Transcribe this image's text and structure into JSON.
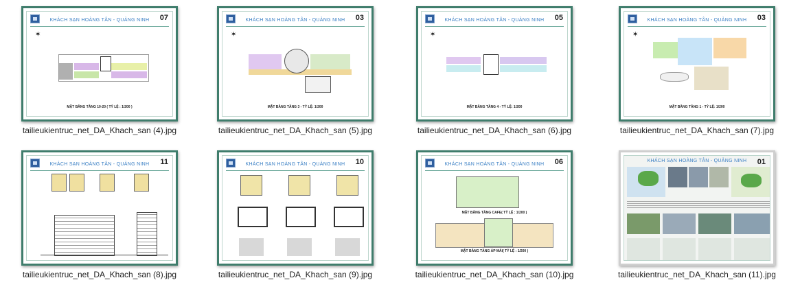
{
  "files": [
    {
      "name": "tailieukientruc_net_DA_Khach_san (4).jpg",
      "sheet_title": "KHÁCH SẠN HOÀNG TÂN - QUẢNG NINH",
      "sheet_number": "07",
      "caption": "MẶT BẰNG TẦNG 10-20 ( TỶ LỆ : 1/200 )"
    },
    {
      "name": "tailieukientruc_net_DA_Khach_san (5).jpg",
      "sheet_title": "KHÁCH SẠN HOÀNG TÂN - QUẢNG NINH",
      "sheet_number": "03",
      "caption": "MẶT BẰNG TẦNG 3 - TỶ LỆ: 1/200"
    },
    {
      "name": "tailieukientruc_net_DA_Khach_san (6).jpg",
      "sheet_title": "KHÁCH SẠN HOÀNG TÂN - QUẢNG NINH",
      "sheet_number": "05",
      "caption": "MẶT BẰNG TẦNG 4 - TỶ LỆ: 1/200"
    },
    {
      "name": "tailieukientruc_net_DA_Khach_san (7).jpg",
      "sheet_title": "KHÁCH SẠN HOÀNG TÂN - QUẢNG NINH",
      "sheet_number": "03",
      "caption": "MẶT BẰNG TẦNG 1 - TỶ LỆ: 1/200"
    },
    {
      "name": "tailieukientruc_net_DA_Khach_san (8).jpg",
      "sheet_title": "KHÁCH SẠN HOÀNG TÂN - QUẢNG NINH",
      "sheet_number": "11",
      "caption": ""
    },
    {
      "name": "tailieukientruc_net_DA_Khach_san (9).jpg",
      "sheet_title": "KHÁCH SẠN HOÀNG TÂN - QUẢNG NINH",
      "sheet_number": "10",
      "caption": ""
    },
    {
      "name": "tailieukientruc_net_DA_Khach_san (10).jpg",
      "sheet_title": "KHÁCH SẠN HOÀNG TÂN - QUẢNG NINH",
      "sheet_number": "06",
      "caption": "MẶT BẰNG TẦNG ÁP MÁI( TỶ LỆ : 1/200 )",
      "caption2": "MẶT BẰNG TẦNG CAFE( TỶ LỆ : 1/200 )"
    },
    {
      "name": "tailieukientruc_net_DA_Khach_san (11).jpg",
      "sheet_title": "KHÁCH SẠN HOÀNG TÂN - QUẢNG NINH",
      "sheet_number": "01",
      "caption": ""
    }
  ],
  "colors": {
    "frame": "#3f7d6c",
    "title": "#3a7fc4"
  }
}
